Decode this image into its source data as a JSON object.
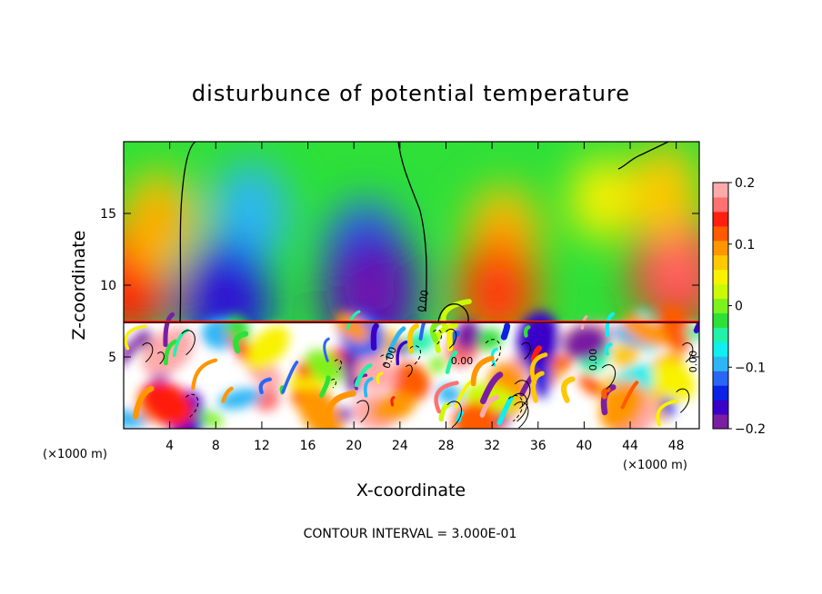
{
  "chart_data": {
    "type": "heatmap",
    "title": "disturbunce of potential temperature",
    "xlabel": "X-coordinate",
    "ylabel": "Z-coordinate",
    "x_unit_left": "(×1000 m)",
    "x_unit_right": "(×1000 m)",
    "xlim": [
      0,
      50
    ],
    "ylim": [
      0,
      20
    ],
    "x_ticks": [
      4,
      8,
      12,
      16,
      20,
      24,
      28,
      32,
      36,
      40,
      44,
      48
    ],
    "y_ticks": [
      5,
      10,
      15
    ],
    "colorbar": {
      "range": [
        -0.2,
        0.2
      ],
      "ticks": [
        {
          "value": 0.2,
          "label": "0.2"
        },
        {
          "value": 0.1,
          "label": "0.1"
        },
        {
          "value": 0,
          "label": "0"
        },
        {
          "value": -0.1,
          "label": "−0.1"
        },
        {
          "value": -0.2,
          "label": "−0.2"
        }
      ],
      "colors": [
        "#7a1fa2",
        "#3b00c8",
        "#0a22e6",
        "#2a66f4",
        "#2eb6f4",
        "#10eef0",
        "#22f2a8",
        "#2ee038",
        "#7ef21c",
        "#cafa06",
        "#f8f200",
        "#ffc800",
        "#ff9600",
        "#ff5a00",
        "#ff1e10",
        "#ff7070",
        "#ffaaaa"
      ]
    },
    "contour_interval_text": "CONTOUR INTERVAL = 3.000E-01",
    "contour_labels": [
      "0.00",
      "0.00",
      "0.00",
      "0.00",
      "0.00"
    ],
    "upper_layer": {
      "z_range": [
        7.4,
        20
      ],
      "anomalies": [
        {
          "x": 0.5,
          "z": 10.5,
          "value": 0.13
        },
        {
          "x": 3.0,
          "z": 14.5,
          "value": 0.08
        },
        {
          "x": 11.0,
          "z": 15.0,
          "value": -0.09
        },
        {
          "x": 9.0,
          "z": 9.0,
          "value": -0.14
        },
        {
          "x": 21.0,
          "z": 12.0,
          "value": -0.12
        },
        {
          "x": 21.5,
          "z": 9.5,
          "value": -0.17
        },
        {
          "x": 33.0,
          "z": 13.5,
          "value": 0.08
        },
        {
          "x": 32.5,
          "z": 9.5,
          "value": 0.12
        },
        {
          "x": 41.5,
          "z": 16.0,
          "value": 0.04
        },
        {
          "x": 48.0,
          "z": 11.0,
          "value": 0.14
        },
        {
          "x": 47.0,
          "z": 16.5,
          "value": 0.07
        }
      ]
    },
    "lower_layer": {
      "z_range": [
        0,
        7.4
      ],
      "description_values_range": [
        -0.2,
        0.2
      ]
    }
  }
}
